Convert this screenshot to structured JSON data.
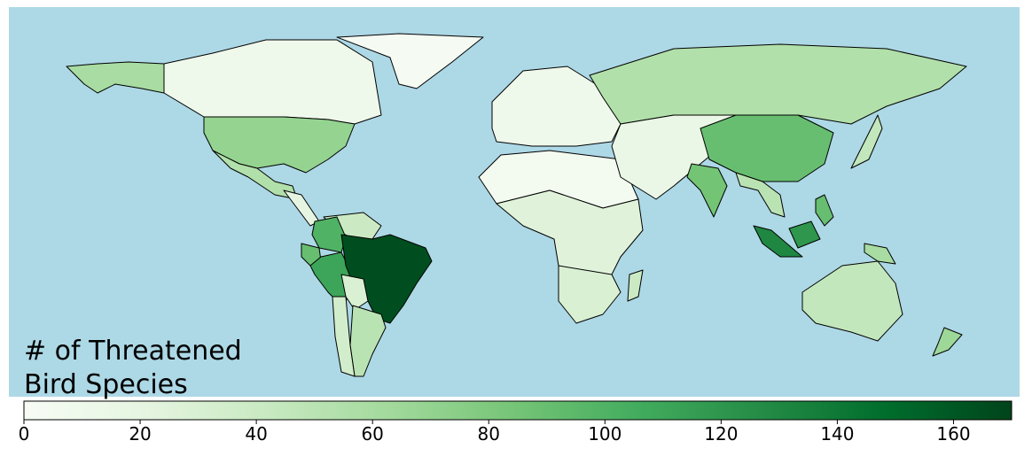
{
  "chart_data": {
    "type": "choropleth",
    "title_lines": [
      "# of Threatened",
      "Bird Species"
    ],
    "colormap": "Greens",
    "values": [
      60,
      10,
      2,
      70,
      55,
      20,
      40,
      100,
      90,
      110,
      165,
      30,
      50,
      35,
      10,
      5,
      25,
      30,
      40,
      55,
      15,
      90,
      85,
      50,
      130,
      120,
      90,
      45,
      60,
      45,
      65
    ],
    "colorbar_lim": [
      0,
      170
    ],
    "colorbar_ticks": [
      0,
      20,
      40,
      60,
      80,
      100,
      120,
      140,
      160
    ]
  }
}
